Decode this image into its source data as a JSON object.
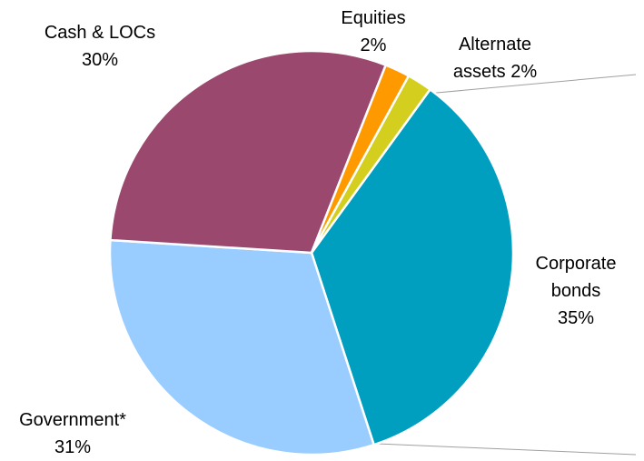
{
  "chart_data": {
    "type": "pie",
    "categories": [
      "Corporate bonds",
      "Government*",
      "Cash & LOCs",
      "Equities",
      "Alternate assets"
    ],
    "values": [
      35,
      31,
      30,
      2,
      2
    ],
    "value_labels": [
      "35%",
      "31%",
      "30%",
      "2%",
      "2%"
    ],
    "colors": [
      "#009fbf",
      "#99ccff",
      "#9a486e",
      "#ff9900",
      "#d4cf1e"
    ]
  }
}
